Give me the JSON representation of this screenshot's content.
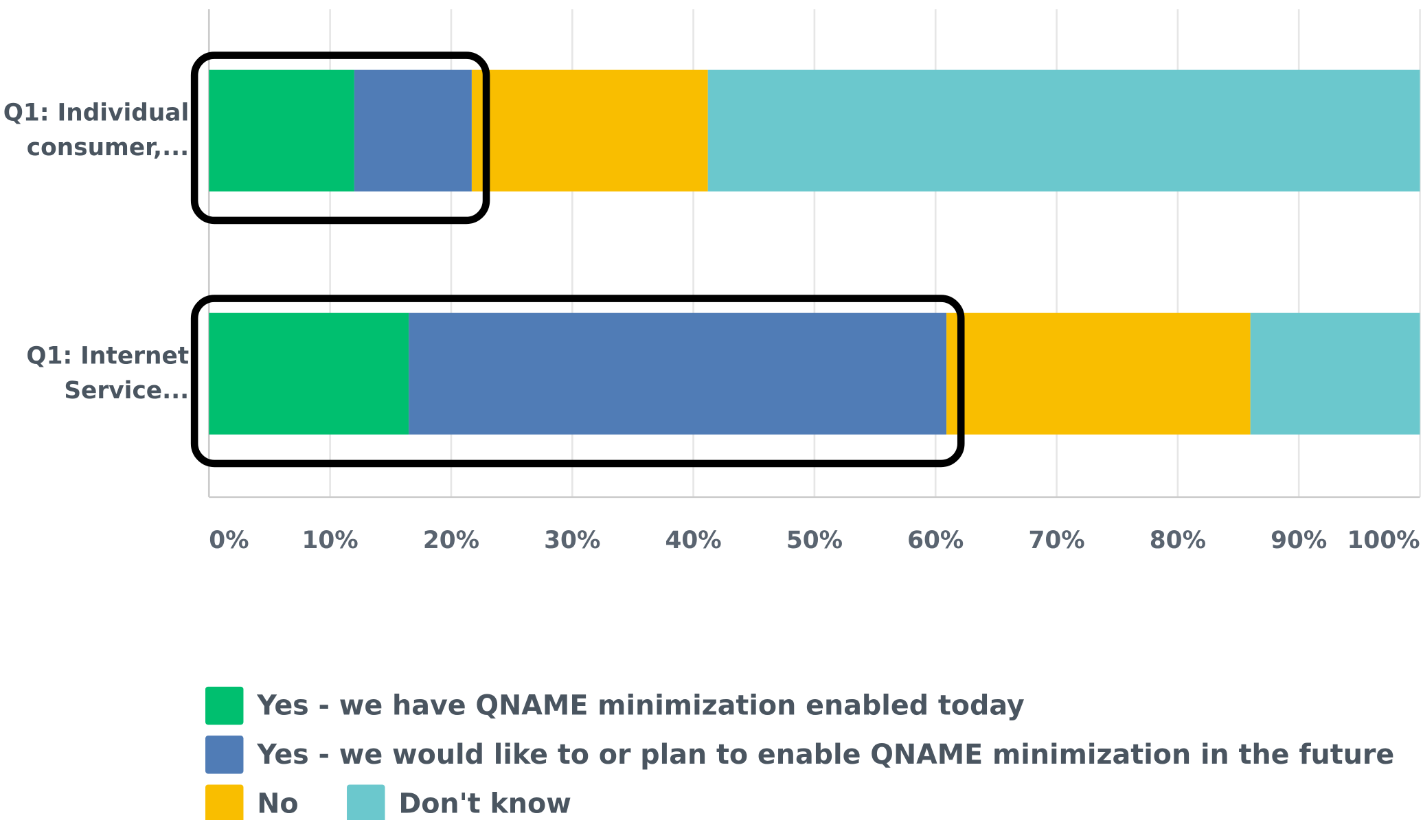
{
  "chart_data": {
    "type": "stacked_barh",
    "categories": [
      "Q1: Individual consumer,...",
      "Q1: Internet Service..."
    ],
    "series": [
      {
        "name": "Yes - we have QNAME minimization enabled today",
        "color": "#00bf6f",
        "values": [
          12,
          16.5
        ]
      },
      {
        "name": "Yes - we would like to or plan to enable QNAME minimization in the future",
        "color": "#507cb6",
        "values": [
          9.7,
          44.4
        ]
      },
      {
        "name": "No",
        "color": "#f9be00",
        "values": [
          19.5,
          25.1
        ]
      },
      {
        "name": "Don't know",
        "color": "#6bc8cd",
        "values": [
          58.8,
          14.0
        ]
      }
    ],
    "xlim": [
      0,
      100
    ],
    "xticks": [
      {
        "value": 0,
        "label": "0%"
      },
      {
        "value": 10,
        "label": "10%"
      },
      {
        "value": 20,
        "label": "20%"
      },
      {
        "value": 30,
        "label": "30%"
      },
      {
        "value": 40,
        "label": "40%"
      },
      {
        "value": 50,
        "label": "50%"
      },
      {
        "value": 60,
        "label": "60%"
      },
      {
        "value": 70,
        "label": "70%"
      },
      {
        "value": 80,
        "label": "80%"
      },
      {
        "value": 90,
        "label": "90%"
      },
      {
        "value": 100,
        "label": "100%"
      }
    ],
    "grid": true
  }
}
